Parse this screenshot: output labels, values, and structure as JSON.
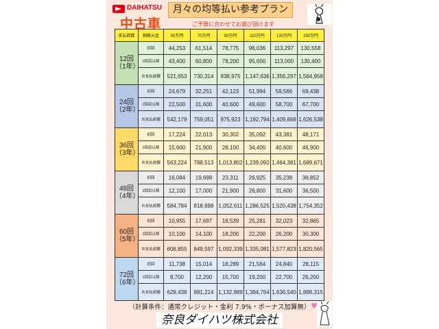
{
  "header": {
    "brand": "DAIHATSU",
    "used_car": "中古車",
    "title": "月々の均等払い参考プラン",
    "subtitle": "ご予算に合わせてお選び頂けます"
  },
  "table": {
    "columns": [
      "支払回数",
      "割賦元金",
      "50万円",
      "70万円",
      "90万円",
      "110万円",
      "130万円",
      "150万円"
    ],
    "row_labels": [
      "初回",
      "2回目以降",
      "お支払総額"
    ],
    "groups": [
      {
        "count": "12回",
        "years": "（1年）",
        "rows": [
          [
            "44,253",
            "61,514",
            "78,775",
            "96,036",
            "113,297",
            "130,558"
          ],
          [
            "43,400",
            "60,800",
            "78,200",
            "95,600",
            "113,000",
            "130,400"
          ],
          [
            "521,653",
            "730,314",
            "938,975",
            "1,147,636",
            "1,356,297",
            "1,564,958"
          ]
        ]
      },
      {
        "count": "24回",
        "years": "（2年）",
        "rows": [
          [
            "24,679",
            "32,251",
            "42,123",
            "51,994",
            "59,566",
            "69,438"
          ],
          [
            "22,500",
            "31,600",
            "40,600",
            "49,600",
            "58,700",
            "67,700"
          ],
          [
            "542,179",
            "759,051",
            "975,923",
            "1,192,794",
            "1,409,666",
            "1,626,538"
          ]
        ]
      },
      {
        "count": "36回",
        "years": "（3年）",
        "rows": [
          [
            "17,224",
            "22,013",
            "30,302",
            "35,092",
            "43,381",
            "48,171"
          ],
          [
            "15,600",
            "21,900",
            "28,100",
            "34,400",
            "40,600",
            "46,900"
          ],
          [
            "563,224",
            "788,513",
            "1,013,802",
            "1,239,092",
            "1,464,381",
            "1,689,671"
          ]
        ]
      },
      {
        "count": "48回",
        "years": "（4年）",
        "rows": [
          [
            "16,084",
            "19,698",
            "23,311",
            "26,925",
            "35,238",
            "38,852"
          ],
          [
            "12,100",
            "17,000",
            "21,900",
            "26,800",
            "31,600",
            "36,500"
          ],
          [
            "584,784",
            "818,698",
            "1,052,611",
            "1,286,525",
            "1,520,438",
            "1,754,352"
          ]
        ]
      },
      {
        "count": "60回",
        "years": "（5年）",
        "rows": [
          [
            "10,955",
            "17,697",
            "18,539",
            "25,281",
            "32,023",
            "32,865"
          ],
          [
            "10,100",
            "14,100",
            "18,200",
            "22,200",
            "26,200",
            "30,300"
          ],
          [
            "606,855",
            "849,597",
            "1,092,339",
            "1,335,081",
            "1,577,823",
            "1,820,565"
          ]
        ]
      },
      {
        "count": "72回",
        "years": "（6年）",
        "rows": [
          [
            "11,738",
            "15,014",
            "18,289",
            "21,564",
            "24,840",
            "28,115"
          ],
          [
            "8,700",
            "12,200",
            "15,700",
            "19,200",
            "22,700",
            "26,200"
          ],
          [
            "629,438",
            "881,214",
            "1,132,989",
            "1,384,764",
            "1,636,540",
            "1,888,315"
          ]
        ]
      }
    ]
  },
  "footer": {
    "conditions": "（計算条件：通常クレジット・金利 7.9%・ボーナス加算無）",
    "company": "奈良ダイハツ株式会社"
  },
  "colors": {
    "brand_red": "#e60012",
    "header_yellow": "#ffef3a",
    "panel": "#fbe8dd"
  },
  "icons": {
    "logo": "daihatsu-logo-icon",
    "mascot": "deer-mascot-icon",
    "heart": "heart-icon"
  }
}
